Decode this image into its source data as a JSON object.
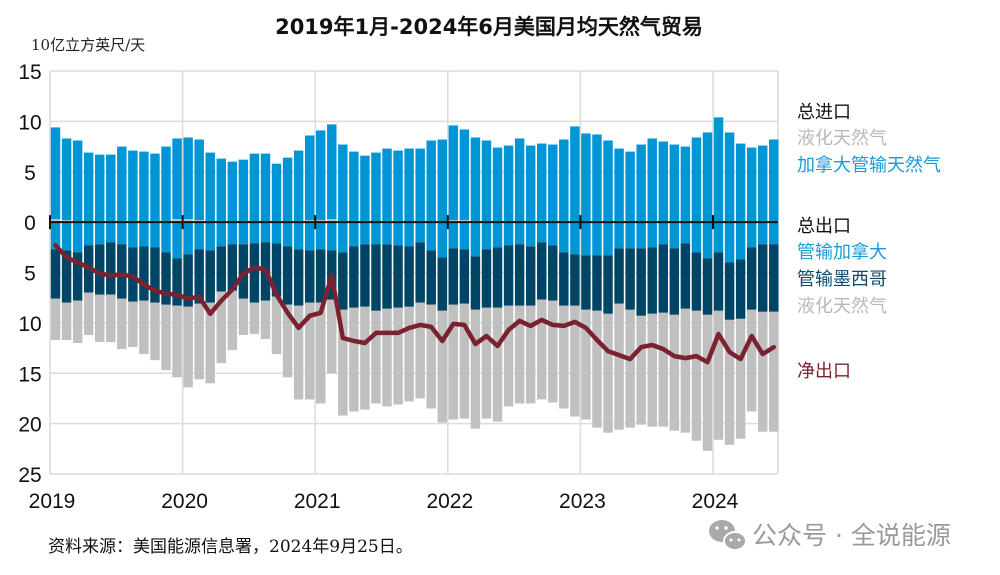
{
  "chart_data": {
    "type": "bar",
    "title": "2019年1月-2024年6月美国月均天然气贸易",
    "ylabel": "10亿立方英尺/天",
    "xlabel": "",
    "ylim": [
      -25,
      15
    ],
    "yticks": [
      15,
      10,
      5,
      0,
      5,
      10,
      15,
      20,
      25
    ],
    "ytick_values": [
      15,
      10,
      5,
      0,
      -5,
      -10,
      -15,
      -20,
      -25
    ],
    "xticks": [
      "2019",
      "2020",
      "2021",
      "2022",
      "2023",
      "2024"
    ],
    "grid": true,
    "legend_position": "right",
    "start_month": "2019-01",
    "months": 66,
    "legend": {
      "imports_header": "总进口",
      "imports_lng": "液化天然气",
      "imports_canada": "加拿大管输天然气",
      "exports_header": "总出口",
      "exports_canada": "管输加拿大",
      "exports_mexico": "管输墨西哥",
      "exports_lng": "液化天然气",
      "net": "净出口"
    },
    "colors": {
      "canada_import": "#0096d6",
      "canada_export": "#0096d6",
      "mexico_export": "#004566",
      "lng": "#c0c0c0",
      "net_line": "#7b2230",
      "header_text": "#111111",
      "lng_text": "#b8b8b8",
      "canada_text": "#1a9ad6",
      "mexico_text": "#0d4a6b",
      "net_text": "#7b2230"
    },
    "series": [
      {
        "name": "进口-液化天然气",
        "direction": "import",
        "values": [
          0.3,
          0.2,
          0.1,
          0.1,
          0.1,
          0.1,
          0.1,
          0.1,
          0.1,
          0.1,
          0.1,
          0.3,
          0.3,
          0.2,
          0.1,
          0.1,
          0.1,
          0.1,
          0.1,
          0.1,
          0.1,
          0.1,
          0.1,
          0.2,
          0.2,
          0.3,
          0.1,
          0.1,
          0.1,
          0.1,
          0.1,
          0.1,
          0.1,
          0.1,
          0.1,
          0.1,
          0.2,
          0.2,
          0.1,
          0.1,
          0.1,
          0.1,
          0.1,
          0.1,
          0.1,
          0.1,
          0.1,
          0.1,
          0.1,
          0.1,
          0.1,
          0.1,
          0.1,
          0.1,
          0.1,
          0.1,
          0.1,
          0.1,
          0.1,
          0.1,
          0.1,
          0.1,
          0.1,
          0.1,
          0.1,
          0.1
        ]
      },
      {
        "name": "进口-加拿大管输天然气",
        "direction": "import",
        "values": [
          9.1,
          8.1,
          8.0,
          6.8,
          6.6,
          6.6,
          7.4,
          7.0,
          6.9,
          6.7,
          7.4,
          8.0,
          8.1,
          8.0,
          6.8,
          6.2,
          5.9,
          6.1,
          6.7,
          6.7,
          5.7,
          6.3,
          7.0,
          8.4,
          8.9,
          9.4,
          7.6,
          6.9,
          6.5,
          6.8,
          7.2,
          7.0,
          7.2,
          7.2,
          8.0,
          8.1,
          9.4,
          9.0,
          8.3,
          8.0,
          7.3,
          7.5,
          8.2,
          7.5,
          7.7,
          7.6,
          8.1,
          9.4,
          8.7,
          8.6,
          8.0,
          7.2,
          6.9,
          7.6,
          8.2,
          7.9,
          7.6,
          7.4,
          8.3,
          8.8,
          10.3,
          8.8,
          7.7,
          7.3,
          7.5,
          8.1
        ]
      },
      {
        "name": "出口-管输加拿大",
        "direction": "export",
        "values": [
          2.7,
          2.8,
          3.0,
          2.3,
          2.2,
          2.0,
          2.2,
          2.5,
          2.4,
          2.5,
          3.0,
          3.6,
          3.2,
          2.7,
          2.8,
          2.4,
          2.2,
          2.2,
          2.1,
          2.0,
          2.1,
          2.4,
          2.7,
          2.8,
          2.7,
          2.8,
          3.0,
          2.4,
          2.2,
          2.2,
          2.2,
          2.3,
          2.4,
          2.0,
          2.8,
          3.5,
          2.6,
          2.7,
          3.4,
          2.7,
          2.5,
          2.3,
          2.2,
          2.4,
          2.0,
          2.3,
          3.0,
          3.2,
          3.3,
          3.3,
          3.3,
          2.6,
          2.6,
          2.6,
          2.5,
          2.2,
          2.6,
          2.1,
          3.0,
          3.6,
          3.0,
          4.0,
          3.7,
          2.5,
          2.2,
          2.2
        ]
      },
      {
        "name": "出口-管输墨西哥",
        "direction": "export",
        "values": [
          4.9,
          5.2,
          4.8,
          4.7,
          5.0,
          5.2,
          5.4,
          5.4,
          5.4,
          5.5,
          5.2,
          4.7,
          5.2,
          5.4,
          5.2,
          4.5,
          4.6,
          5.4,
          5.9,
          5.8,
          5.3,
          5.8,
          5.6,
          5.2,
          5.3,
          4.9,
          5.7,
          6.1,
          6.2,
          6.6,
          6.4,
          6.2,
          6.0,
          6.0,
          5.4,
          5.3,
          5.6,
          5.4,
          5.3,
          5.8,
          6.0,
          6.0,
          6.1,
          5.9,
          5.7,
          5.5,
          5.3,
          5.1,
          5.4,
          5.5,
          5.8,
          5.5,
          6.1,
          6.7,
          6.6,
          6.8,
          6.6,
          6.5,
          5.8,
          5.6,
          5.8,
          5.7,
          5.9,
          6.2,
          6.7,
          6.7
        ]
      },
      {
        "name": "出口-液化天然气",
        "direction": "export",
        "values": [
          4.1,
          3.7,
          4.2,
          4.2,
          4.7,
          4.7,
          5.0,
          4.5,
          5.3,
          5.7,
          6.5,
          7.1,
          8.0,
          7.5,
          8.0,
          7.1,
          5.9,
          3.6,
          3.1,
          3.8,
          5.7,
          7.2,
          9.3,
          9.6,
          10.0,
          7.3,
          10.5,
          10.3,
          10.2,
          9.2,
          9.7,
          9.6,
          9.4,
          9.5,
          10.3,
          11.1,
          11.4,
          11.4,
          11.8,
          11.0,
          11.3,
          10.0,
          9.7,
          9.7,
          9.9,
          10.1,
          10.2,
          11.0,
          10.9,
          11.6,
          11.8,
          12.5,
          11.7,
          10.8,
          11.2,
          11.3,
          11.5,
          12.3,
          12.9,
          13.5,
          12.8,
          12.4,
          11.9,
          10.1,
          11.9,
          11.9
        ]
      },
      {
        "name": "净出口",
        "direction": "net",
        "type": "line",
        "values": [
          2.3,
          3.5,
          4.0,
          4.5,
          5.1,
          5.3,
          5.2,
          5.4,
          6.2,
          6.8,
          7.1,
          7.2,
          7.6,
          7.4,
          9.1,
          7.8,
          6.7,
          5.1,
          4.5,
          4.7,
          7.2,
          9.0,
          10.5,
          9.3,
          9.0,
          5.3,
          11.5,
          11.8,
          12.0,
          11.0,
          11.0,
          11.0,
          10.5,
          10.2,
          10.4,
          11.8,
          10.1,
          10.2,
          12.1,
          11.3,
          12.3,
          10.7,
          9.8,
          10.3,
          9.7,
          10.2,
          10.3,
          9.9,
          10.5,
          11.7,
          12.8,
          13.2,
          13.6,
          12.4,
          12.2,
          12.6,
          13.3,
          13.5,
          13.3,
          13.9,
          11.1,
          12.9,
          13.6,
          11.3,
          13.1,
          12.4
        ]
      }
    ]
  },
  "footer": {
    "source": "资料来源：美国能源信息署，2024年9月25日。",
    "watermark": "公众号 · 全说能源"
  }
}
